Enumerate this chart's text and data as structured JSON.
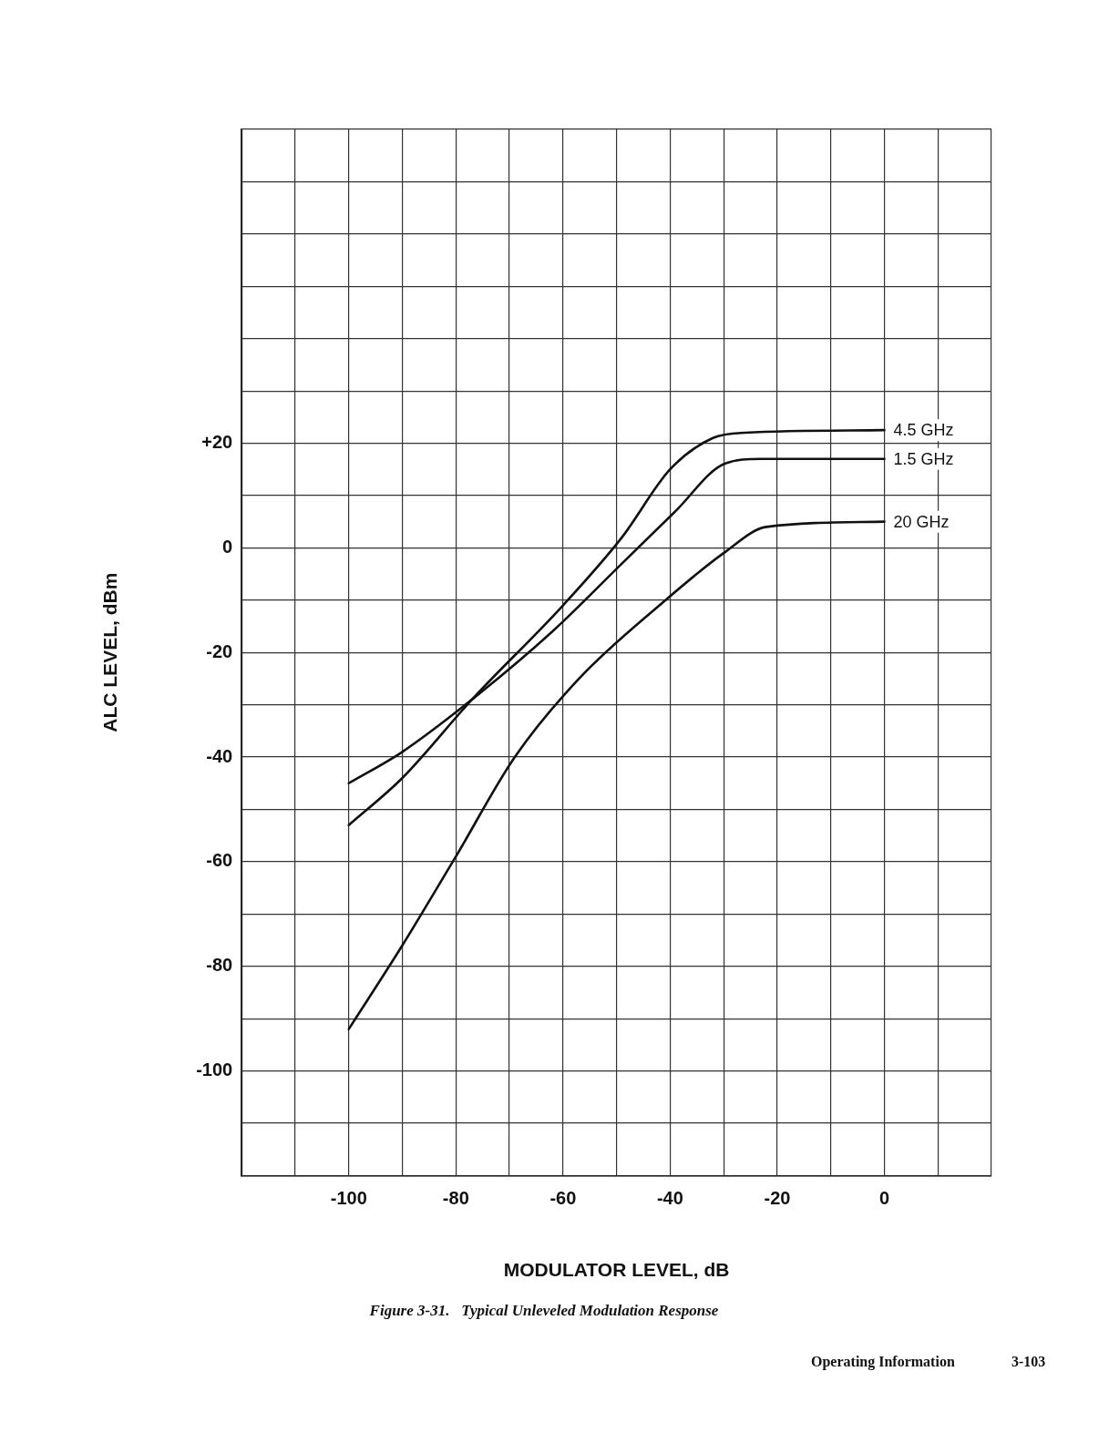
{
  "chart_data": {
    "type": "line",
    "title": "Figure 3-31.   Typical Unleveled Modulation Response",
    "xlabel": "MODULATOR LEVEL, dB",
    "ylabel": "ALC LEVEL, dBm",
    "xlim": [
      -120,
      20
    ],
    "ylim": [
      -120,
      80
    ],
    "xticks": [
      {
        "value": -120,
        "label": null
      },
      {
        "value": -110,
        "label": null
      },
      -100,
      {
        "value": -90,
        "label": null
      },
      -80,
      {
        "value": -70,
        "label": null
      },
      -60,
      {
        "value": -50,
        "label": null
      },
      -40,
      {
        "value": -30,
        "label": null
      },
      -20,
      {
        "value": -10,
        "label": null
      },
      0,
      {
        "value": 10,
        "label": null
      },
      {
        "value": 20,
        "label": null
      }
    ],
    "yticks": [
      {
        "value": -120,
        "label": null
      },
      {
        "value": -110,
        "label": null
      },
      -100,
      {
        "value": -90,
        "label": null
      },
      -80,
      {
        "value": -70,
        "label": null
      },
      -60,
      {
        "value": -50,
        "label": null
      },
      -40,
      {
        "value": -30,
        "label": null
      },
      -20,
      {
        "value": -10,
        "label": null
      },
      0,
      {
        "value": 10,
        "label": null
      },
      {
        "value": 20,
        "label": "+20"
      },
      {
        "value": 30,
        "label": null
      },
      {
        "value": 40,
        "label": null
      },
      {
        "value": 50,
        "label": null
      },
      {
        "value": 60,
        "label": null
      },
      {
        "value": 70,
        "label": null
      },
      {
        "value": 80,
        "label": null
      }
    ],
    "grid": true,
    "legend": false,
    "marker": "none",
    "line_style": "solid",
    "series": [
      {
        "name": "4.5 GHz",
        "color": "#111111",
        "x": [
          -100,
          -90,
          -77,
          -60,
          -49,
          -40,
          -32,
          -26,
          0
        ],
        "values": [
          -53,
          -44,
          -29,
          -11,
          2,
          15,
          21,
          22,
          22.5
        ]
      },
      {
        "name": "1.5 GHz",
        "color": "#111111",
        "x": [
          -100,
          -90,
          -77,
          -62,
          -49,
          -39,
          -30,
          -23,
          0
        ],
        "values": [
          -45,
          -39,
          -29,
          -16,
          -3,
          7,
          16,
          17,
          17
        ]
      },
      {
        "name": "20 GHz",
        "color": "#111111",
        "x": [
          -100,
          -90,
          -80,
          -69,
          -57,
          -42,
          -30,
          -22,
          0
        ],
        "values": [
          -92,
          -76,
          -59,
          -40,
          -25,
          -11,
          -1,
          4,
          5
        ]
      }
    ],
    "annotations": [
      "Operating Information",
      "3-103"
    ]
  }
}
